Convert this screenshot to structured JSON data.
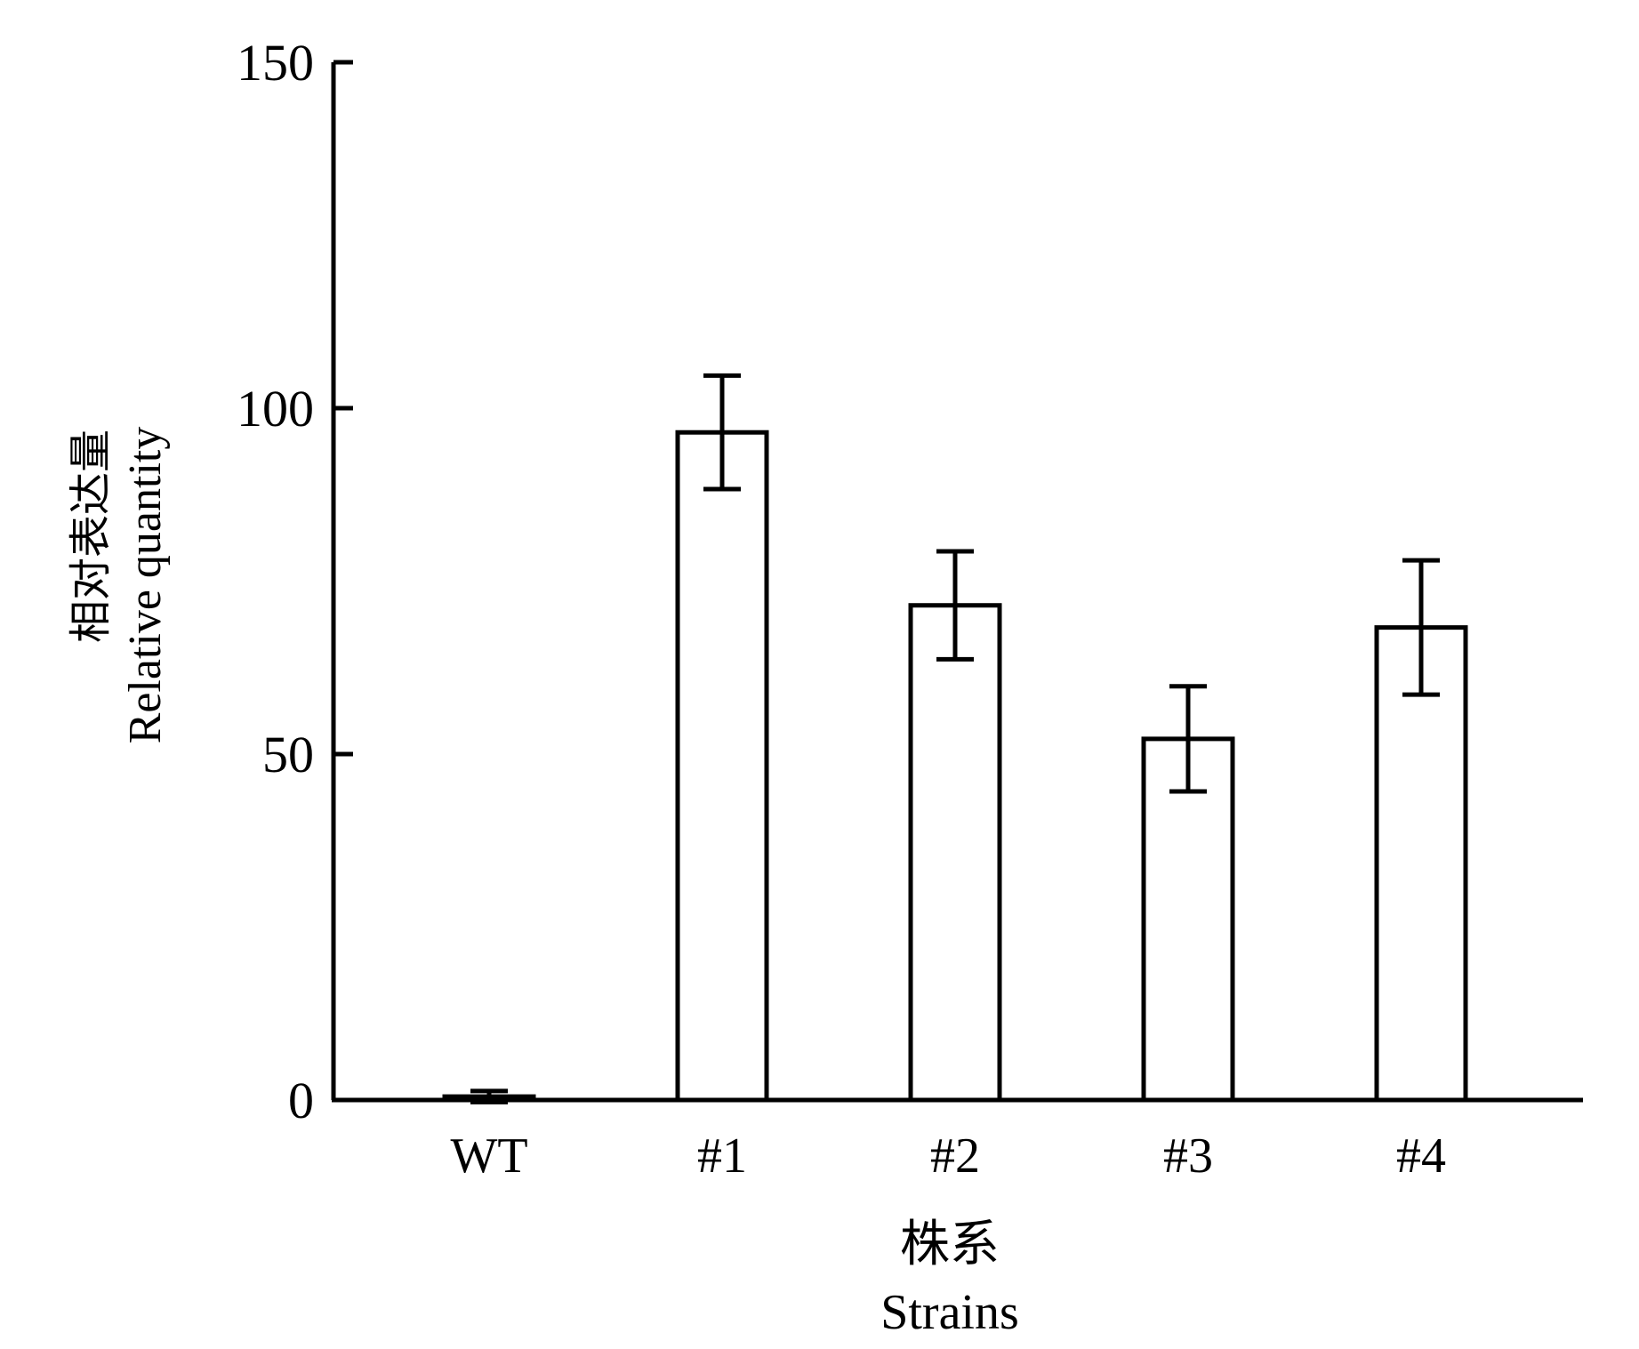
{
  "chart_data": {
    "type": "bar",
    "title": "",
    "categories": [
      "WT",
      "#1",
      "#2",
      "#3",
      "#4"
    ],
    "series": [
      {
        "values": [
          0.5,
          96.5,
          71.5,
          52.2,
          68.3
        ],
        "error": [
          0.8,
          8.2,
          7.8,
          7.6,
          9.7
        ]
      }
    ],
    "ylim": [
      0,
      150
    ],
    "yticks": [
      0,
      50,
      100,
      150
    ],
    "xlabel_cn": "株系",
    "xlabel_en": "Strains",
    "ylabel_cn": "相对表达量",
    "ylabel_en": "Relative quantity",
    "grid": false,
    "bar_fill": "#ffffff",
    "bar_stroke": "#000000"
  }
}
